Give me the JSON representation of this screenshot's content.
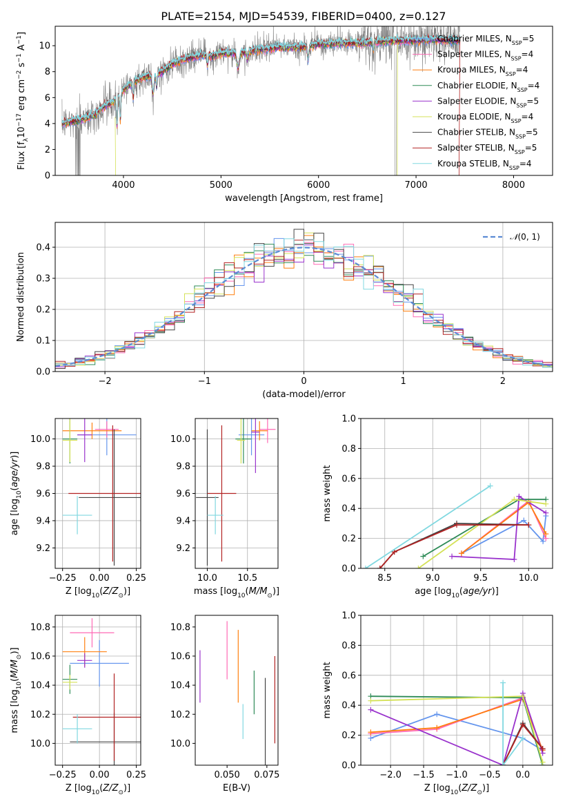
{
  "figure": {
    "title": "PLATE=2154, MJD=54539, FIBERID=0400, z=0.127"
  },
  "models": [
    {
      "name": "Chabrier MILES",
      "nssp": "5",
      "color": "#6495ed"
    },
    {
      "name": "Salpeter MILES",
      "nssp": "4",
      "color": "#ff69b4"
    },
    {
      "name": "Kroupa MILES",
      "nssp": "4",
      "color": "#ff7f0e"
    },
    {
      "name": "Chabrier ELODIE",
      "nssp": "4",
      "color": "#2e8b57"
    },
    {
      "name": "Salpeter ELODIE",
      "nssp": "5",
      "color": "#9932cc"
    },
    {
      "name": "Kroupa ELODIE",
      "nssp": "4",
      "color": "#d4e157"
    },
    {
      "name": "Chabrier STELIB",
      "nssp": "5",
      "color": "#444444"
    },
    {
      "name": "Salpeter STELIB",
      "nssp": "5",
      "color": "#b22222"
    },
    {
      "name": "Kroupa STELIB",
      "nssp": "4",
      "color": "#80d8e0"
    }
  ],
  "chart_data": [
    {
      "id": "spectrum",
      "type": "line",
      "xlabel": "wavelength [Angstrom, rest frame]",
      "ylabel": "Flux [f_λ10^-17 erg cm^-2 s^-1 A^-1]",
      "xlim": [
        3300,
        8400
      ],
      "ylim": [
        0,
        11.5
      ],
      "xticks": [
        4000,
        5000,
        6000,
        7000,
        8000
      ],
      "yticks": [
        0,
        2,
        4,
        6,
        8,
        10
      ],
      "grid": false,
      "legend": "top-right",
      "data_color": "#808080",
      "continuum": {
        "x": [
          3370,
          3500,
          3600,
          3700,
          3800,
          3900,
          4000,
          4100,
          4200,
          4300,
          4400,
          4500,
          4600,
          4700,
          4800,
          4900,
          5000,
          5200,
          5400,
          5600,
          5800,
          6000,
          6200,
          6400,
          6600,
          6800,
          7000,
          7200,
          7400
        ],
        "y": [
          4.0,
          4.2,
          4.4,
          4.7,
          5.3,
          5.7,
          6.6,
          7.2,
          7.6,
          7.7,
          8.0,
          8.6,
          8.9,
          9.1,
          9.3,
          9.2,
          9.4,
          9.5,
          9.7,
          9.9,
          9.9,
          10.1,
          10.2,
          10.2,
          10.3,
          10.4,
          10.4,
          10.5,
          10.4
        ]
      }
    },
    {
      "id": "residuals",
      "type": "histogram",
      "xlabel": "(data-model)/error",
      "ylabel": "Normed distribution",
      "xlim": [
        -2.5,
        2.5
      ],
      "ylim": [
        0,
        0.48
      ],
      "xticks": [
        -2,
        -1,
        0,
        1,
        2
      ],
      "yticks": [
        0.0,
        0.1,
        0.2,
        0.3,
        0.4
      ],
      "grid": true,
      "legend": "top-right",
      "reference_label": "N(0,1)",
      "reference_color": "#5b8bd4",
      "bin_width": 0.1
    },
    {
      "id": "age-vs-z",
      "type": "errorbar",
      "xlabel": "Z [log10(Z/Z⊙)]",
      "ylabel": "age  [log10(age/yr)]",
      "xlim": [
        -0.3,
        0.28
      ],
      "ylim": [
        9.05,
        10.15
      ],
      "xticks": [
        -0.25,
        0.0,
        0.25
      ],
      "yticks": [
        9.2,
        9.4,
        9.6,
        9.8,
        10.0
      ],
      "grid": true,
      "points": [
        {
          "model": 0,
          "x": 0.05,
          "y": 10.03,
          "xerr": 0.2,
          "yerr": 0.15
        },
        {
          "model": 1,
          "x": 0.05,
          "y": 10.07,
          "xerr": 0.08,
          "yerr": 0.06
        },
        {
          "model": 2,
          "x": -0.05,
          "y": 10.06,
          "xerr": 0.2,
          "yerr": 0.06
        },
        {
          "model": 3,
          "x": -0.2,
          "y": 10.0,
          "xerr": 0.05,
          "yerr": 0.18
        },
        {
          "model": 4,
          "x": -0.1,
          "y": 10.03,
          "xerr": 0.05,
          "yerr": 0.2
        },
        {
          "model": 5,
          "x": -0.2,
          "y": 9.99,
          "xerr": 0.05,
          "yerr": 0.16
        },
        {
          "model": 6,
          "x": 0.1,
          "y": 9.57,
          "xerr": 0.24,
          "yerr": 0.5
        },
        {
          "model": 7,
          "x": 0.09,
          "y": 9.6,
          "xerr": 0.3,
          "yerr": 0.5
        },
        {
          "model": 8,
          "x": -0.15,
          "y": 9.44,
          "xerr": 0.1,
          "yerr": 0.14
        }
      ]
    },
    {
      "id": "age-vs-mass",
      "type": "errorbar",
      "xlabel": "mass [log10(M/M⊙)]",
      "ylabel": "",
      "xlim": [
        9.85,
        10.88
      ],
      "ylim": [
        9.05,
        10.15
      ],
      "xticks": [
        10.0,
        10.5
      ],
      "yticks": [
        9.2,
        9.4,
        9.6,
        9.8,
        10.0
      ],
      "grid": true,
      "points": [
        {
          "model": 0,
          "x": 10.55,
          "y": 10.03,
          "xerr": 0.16,
          "yerr": 0.15
        },
        {
          "model": 1,
          "x": 10.75,
          "y": 10.07,
          "xerr": 0.1,
          "yerr": 0.1
        },
        {
          "model": 2,
          "x": 10.65,
          "y": 10.06,
          "xerr": 0.1,
          "yerr": 0.07
        },
        {
          "model": 3,
          "x": 10.45,
          "y": 10.0,
          "xerr": 0.1,
          "yerr": 0.18
        },
        {
          "model": 4,
          "x": 10.6,
          "y": 10.05,
          "xerr": 0.05,
          "yerr": 0.3
        },
        {
          "model": 5,
          "x": 10.42,
          "y": 9.99,
          "xerr": 0.05,
          "yerr": 0.17
        },
        {
          "model": 6,
          "x": 10.0,
          "y": 9.57,
          "xerr": 0.14,
          "yerr": 0.5
        },
        {
          "model": 7,
          "x": 10.18,
          "y": 9.6,
          "xerr": 0.18,
          "yerr": 0.5
        },
        {
          "model": 8,
          "x": 10.1,
          "y": 9.44,
          "xerr": 0.1,
          "yerr": 0.14
        }
      ]
    },
    {
      "id": "weight-vs-age",
      "type": "line",
      "xlabel": "age  [log10(age/yr)]",
      "ylabel": "mass weight",
      "xlim": [
        8.25,
        10.25
      ],
      "ylim": [
        0,
        1.0
      ],
      "xticks": [
        8.5,
        9.0,
        9.5,
        10.0
      ],
      "yticks": [
        0.0,
        0.2,
        0.4,
        0.6,
        0.8,
        1.0
      ],
      "grid": true,
      "series": [
        {
          "model": 0,
          "x": [
            9.3,
            9.95,
            10.15,
            10.18
          ],
          "y": [
            0.1,
            0.32,
            0.18,
            0.35
          ]
        },
        {
          "model": 1,
          "x": [
            9.3,
            10.0,
            10.18
          ],
          "y": [
            0.1,
            0.45,
            0.2
          ]
        },
        {
          "model": 2,
          "x": [
            9.3,
            10.0,
            10.18
          ],
          "y": [
            0.1,
            0.44,
            0.23
          ]
        },
        {
          "model": 3,
          "x": [
            8.9,
            9.9,
            10.18
          ],
          "y": [
            0.08,
            0.46,
            0.46
          ]
        },
        {
          "model": 4,
          "x": [
            9.2,
            9.85,
            9.9,
            10.18
          ],
          "y": [
            0.08,
            0.06,
            0.48,
            0.37
          ]
        },
        {
          "model": 5,
          "x": [
            8.85,
            9.85,
            10.18
          ],
          "y": [
            0.0,
            0.46,
            0.43
          ]
        },
        {
          "model": 6,
          "x": [
            8.45,
            8.6,
            9.25,
            10.0
          ],
          "y": [
            0.0,
            0.11,
            0.3,
            0.29
          ]
        },
        {
          "model": 7,
          "x": [
            8.45,
            8.6,
            9.25,
            10.0
          ],
          "y": [
            0.0,
            0.11,
            0.29,
            0.29
          ]
        },
        {
          "model": 8,
          "x": [
            8.3,
            9.6
          ],
          "y": [
            0.0,
            0.55
          ]
        }
      ]
    },
    {
      "id": "mass-vs-z",
      "type": "errorbar",
      "xlabel": "Z [log10(Z/Z⊙)]",
      "ylabel": "mass [log10(M/M⊙)]",
      "xlim": [
        -0.3,
        0.28
      ],
      "ylim": [
        9.85,
        10.88
      ],
      "xticks": [
        -0.25,
        0.0,
        0.25
      ],
      "yticks": [
        10.0,
        10.2,
        10.4,
        10.6,
        10.8
      ],
      "grid": true,
      "points": [
        {
          "model": 0,
          "x": 0.0,
          "y": 10.55,
          "xerr": 0.2,
          "yerr": 0.16
        },
        {
          "model": 1,
          "x": -0.05,
          "y": 10.76,
          "xerr": 0.15,
          "yerr": 0.1
        },
        {
          "model": 2,
          "x": -0.1,
          "y": 10.63,
          "xerr": 0.15,
          "yerr": 0.1
        },
        {
          "model": 3,
          "x": -0.2,
          "y": 10.44,
          "xerr": 0.05,
          "yerr": 0.1
        },
        {
          "model": 4,
          "x": -0.1,
          "y": 10.57,
          "xerr": 0.05,
          "yerr": 0.05
        },
        {
          "model": 5,
          "x": -0.2,
          "y": 10.42,
          "xerr": 0.05,
          "yerr": 0.05
        },
        {
          "model": 6,
          "x": 0.1,
          "y": 10.01,
          "xerr": 0.3,
          "yerr": 0.2
        },
        {
          "model": 7,
          "x": 0.1,
          "y": 10.18,
          "xerr": 0.28,
          "yerr": 0.3
        },
        {
          "model": 8,
          "x": -0.15,
          "y": 10.1,
          "xerr": 0.1,
          "yerr": 0.1
        }
      ]
    },
    {
      "id": "mass-vs-ebv",
      "type": "errorbar",
      "xlabel": "E(B-V)",
      "ylabel": "",
      "xlim": [
        0.03,
        0.082
      ],
      "ylim": [
        9.85,
        10.88
      ],
      "xticks": [
        0.05,
        0.075
      ],
      "yticks": [
        10.0,
        10.2,
        10.4,
        10.6,
        10.8
      ],
      "grid": false,
      "points": [
        {
          "model": 1,
          "x": 0.05,
          "y": 10.64,
          "xerr": 0,
          "yerr": 0.2
        },
        {
          "model": 2,
          "x": 0.057,
          "y": 10.53,
          "xerr": 0,
          "yerr": 0.25
        },
        {
          "model": 4,
          "x": 0.033,
          "y": 10.46,
          "xerr": 0,
          "yerr": 0.18
        },
        {
          "model": 3,
          "x": 0.067,
          "y": 10.35,
          "xerr": 0,
          "yerr": 0.15
        },
        {
          "model": 8,
          "x": 0.06,
          "y": 10.15,
          "xerr": 0,
          "yerr": 0.12
        },
        {
          "model": 6,
          "x": 0.074,
          "y": 10.1,
          "xerr": 0,
          "yerr": 0.35
        },
        {
          "model": 7,
          "x": 0.08,
          "y": 10.3,
          "xerr": 0,
          "yerr": 0.3
        }
      ]
    },
    {
      "id": "weight-vs-z",
      "type": "line",
      "xlabel": "Z [log10(Z/Z⊙)]",
      "ylabel": "mass weight",
      "xlim": [
        -2.45,
        0.45
      ],
      "ylim": [
        0,
        1.0
      ],
      "xticks": [
        -2.0,
        -1.5,
        -1.0,
        -0.5,
        0.0
      ],
      "yticks": [
        0.0,
        0.2,
        0.4,
        0.6,
        0.8,
        1.0
      ],
      "grid": true,
      "series": [
        {
          "model": 0,
          "x": [
            -2.3,
            -1.3,
            0.0,
            0.3
          ],
          "y": [
            0.18,
            0.34,
            0.18,
            0.1
          ]
        },
        {
          "model": 1,
          "x": [
            -2.3,
            -1.3,
            0.0,
            0.3
          ],
          "y": [
            0.21,
            0.24,
            0.45,
            0.1
          ]
        },
        {
          "model": 2,
          "x": [
            -2.3,
            -1.3,
            0.0,
            0.3
          ],
          "y": [
            0.22,
            0.25,
            0.44,
            0.1
          ]
        },
        {
          "model": 3,
          "x": [
            -2.3,
            0.0,
            0.3
          ],
          "y": [
            0.46,
            0.45,
            0.0
          ]
        },
        {
          "model": 4,
          "x": [
            -2.3,
            -0.3,
            0.0,
            0.3
          ],
          "y": [
            0.37,
            0.0,
            0.48,
            0.08
          ]
        },
        {
          "model": 5,
          "x": [
            -2.3,
            0.0,
            0.3
          ],
          "y": [
            0.43,
            0.46,
            0.02
          ]
        },
        {
          "model": 6,
          "x": [
            -0.3,
            0.0,
            0.3
          ],
          "y": [
            0.0,
            0.28,
            0.11
          ]
        },
        {
          "model": 7,
          "x": [
            -0.3,
            0.0,
            0.3
          ],
          "y": [
            0.0,
            0.27,
            0.11
          ]
        },
        {
          "model": 8,
          "x": [
            -0.3,
            -0.3,
            0.0
          ],
          "y": [
            0.55,
            0.0,
            0.18
          ]
        }
      ]
    }
  ]
}
